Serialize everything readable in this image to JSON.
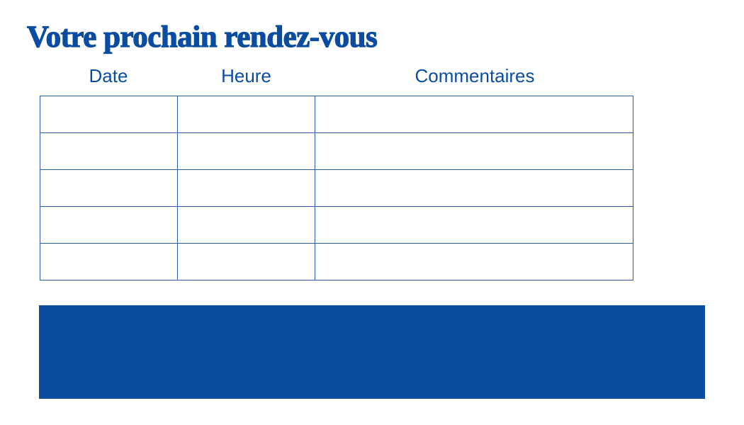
{
  "title": "Votre prochain rendez-vous",
  "table": {
    "headers": [
      "Date",
      "Heure",
      "Commentaires"
    ],
    "rows": [
      [
        "",
        "",
        ""
      ],
      [
        "",
        "",
        ""
      ],
      [
        "",
        "",
        ""
      ],
      [
        "",
        "",
        ""
      ],
      [
        "",
        "",
        ""
      ]
    ]
  },
  "colors": {
    "accent": "#0a4da0"
  }
}
